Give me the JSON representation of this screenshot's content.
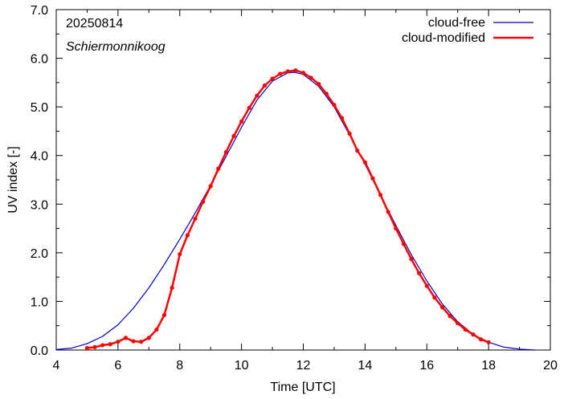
{
  "chart_data": {
    "type": "line",
    "xlabel": "Time  [UTC]",
    "ylabel": "UV index  [-]",
    "xlim": [
      4,
      20
    ],
    "ylim": [
      0,
      7
    ],
    "x_ticks": [
      4,
      6,
      8,
      10,
      12,
      14,
      16,
      18,
      20
    ],
    "y_ticks": [
      "0.0",
      "1.0",
      "2.0",
      "3.0",
      "4.0",
      "5.0",
      "6.0",
      "7.0"
    ],
    "annotations": [
      "20250814",
      "Schiermonnikoog"
    ],
    "legend_position": "top-right",
    "grid": false,
    "series": [
      {
        "name": "cloud-free",
        "color": "#0000cc",
        "markers": false,
        "x": [
          4.0,
          4.5,
          5.0,
          5.5,
          6.0,
          6.5,
          7.0,
          7.5,
          8.0,
          8.5,
          9.0,
          9.5,
          10.0,
          10.5,
          11.0,
          11.5,
          11.7,
          12.0,
          12.5,
          13.0,
          13.5,
          14.0,
          14.5,
          15.0,
          15.5,
          16.0,
          16.5,
          17.0,
          17.5,
          18.0,
          18.5,
          19.0,
          19.5
        ],
        "y": [
          0.01,
          0.04,
          0.13,
          0.28,
          0.52,
          0.86,
          1.28,
          1.76,
          2.28,
          2.82,
          3.39,
          3.98,
          4.58,
          5.14,
          5.53,
          5.7,
          5.71,
          5.67,
          5.42,
          5.0,
          4.42,
          3.82,
          3.18,
          2.56,
          1.96,
          1.42,
          0.95,
          0.58,
          0.32,
          0.16,
          0.06,
          0.02,
          0.0
        ]
      },
      {
        "name": "cloud-modified",
        "color": "#ff0000",
        "markers": true,
        "x": [
          5.0,
          5.25,
          5.5,
          5.75,
          6.0,
          6.25,
          6.5,
          6.75,
          7.0,
          7.25,
          7.5,
          7.75,
          8.0,
          8.25,
          8.5,
          8.75,
          9.0,
          9.25,
          9.5,
          9.75,
          10.0,
          10.25,
          10.5,
          10.75,
          11.0,
          11.25,
          11.5,
          11.75,
          12.0,
          12.25,
          12.5,
          12.75,
          13.0,
          13.25,
          13.5,
          13.75,
          14.0,
          14.25,
          14.5,
          14.75,
          15.0,
          15.25,
          15.5,
          15.75,
          16.0,
          16.25,
          16.5,
          16.75,
          17.0,
          17.25,
          17.5,
          17.75,
          18.0
        ],
        "y": [
          0.04,
          0.06,
          0.1,
          0.12,
          0.17,
          0.25,
          0.18,
          0.17,
          0.25,
          0.42,
          0.72,
          1.28,
          1.97,
          2.36,
          2.7,
          3.05,
          3.37,
          3.73,
          4.07,
          4.4,
          4.7,
          4.98,
          5.23,
          5.44,
          5.58,
          5.68,
          5.73,
          5.75,
          5.7,
          5.6,
          5.47,
          5.27,
          5.04,
          4.77,
          4.45,
          4.1,
          3.86,
          3.53,
          3.19,
          2.84,
          2.5,
          2.18,
          1.87,
          1.58,
          1.32,
          1.08,
          0.88,
          0.7,
          0.55,
          0.42,
          0.32,
          0.22,
          0.16
        ]
      }
    ]
  }
}
